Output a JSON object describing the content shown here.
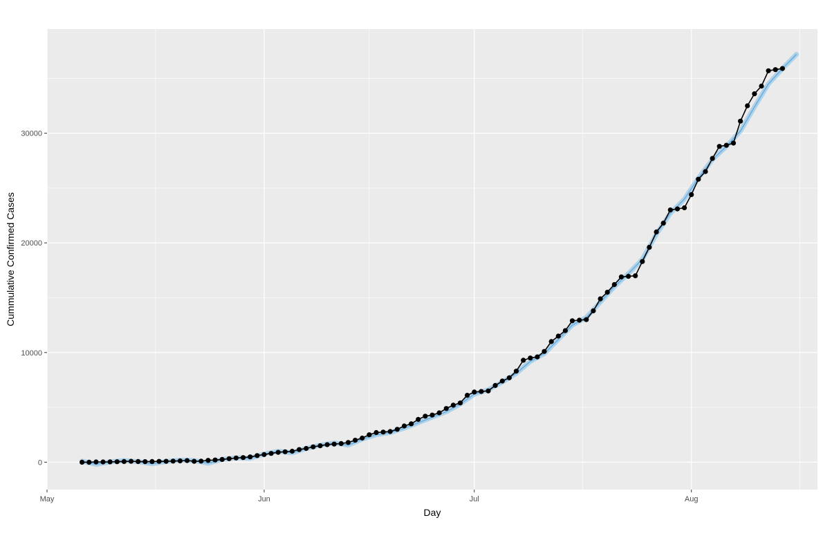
{
  "chart_data": {
    "type": "line",
    "title": "",
    "xlabel": "Day",
    "ylabel": "Cummulative Confirmed Cases",
    "x_tick_labels": [
      "May",
      "Jun",
      "Jul",
      "Aug"
    ],
    "x_tick_dates": [
      "2020-05-01",
      "2020-06-01",
      "2020-07-01",
      "2020-08-01"
    ],
    "y_tick_values": [
      0,
      10000,
      20000,
      30000
    ],
    "y_tick_labels": [
      "0",
      "10000",
      "20000",
      "30000"
    ],
    "xlim": [
      "2020-04-31",
      "2020-08-19"
    ],
    "ylim": [
      -2500,
      39500
    ],
    "grid": true,
    "background_color": "#EBEBEB",
    "grid_color": "#FFFFFF",
    "series": [
      {
        "role": "observed",
        "color": "#000000",
        "x": [
          "2020-05-06",
          "2020-05-07",
          "2020-05-08",
          "2020-05-09",
          "2020-05-10",
          "2020-05-11",
          "2020-05-12",
          "2020-05-13",
          "2020-05-14",
          "2020-05-15",
          "2020-05-16",
          "2020-05-17",
          "2020-05-18",
          "2020-05-19",
          "2020-05-20",
          "2020-05-21",
          "2020-05-22",
          "2020-05-23",
          "2020-05-24",
          "2020-05-25",
          "2020-05-26",
          "2020-05-27",
          "2020-05-28",
          "2020-05-29",
          "2020-05-30",
          "2020-05-31",
          "2020-06-01",
          "2020-06-02",
          "2020-06-03",
          "2020-06-04",
          "2020-06-05",
          "2020-06-06",
          "2020-06-07",
          "2020-06-08",
          "2020-06-09",
          "2020-06-10",
          "2020-06-11",
          "2020-06-12",
          "2020-06-13",
          "2020-06-14",
          "2020-06-15",
          "2020-06-16",
          "2020-06-17",
          "2020-06-18",
          "2020-06-19",
          "2020-06-20",
          "2020-06-21",
          "2020-06-22",
          "2020-06-23",
          "2020-06-24",
          "2020-06-25",
          "2020-06-26",
          "2020-06-27",
          "2020-06-28",
          "2020-06-29",
          "2020-06-30",
          "2020-07-01",
          "2020-07-02",
          "2020-07-03",
          "2020-07-04",
          "2020-07-05",
          "2020-07-06",
          "2020-07-07",
          "2020-07-08",
          "2020-07-09",
          "2020-07-10",
          "2020-07-11",
          "2020-07-12",
          "2020-07-13",
          "2020-07-14",
          "2020-07-15",
          "2020-07-16",
          "2020-07-17",
          "2020-07-18",
          "2020-07-19",
          "2020-07-20",
          "2020-07-21",
          "2020-07-22",
          "2020-07-23",
          "2020-07-24",
          "2020-07-25",
          "2020-07-26",
          "2020-07-27",
          "2020-07-28",
          "2020-07-29",
          "2020-07-30",
          "2020-07-31",
          "2020-08-01",
          "2020-08-02",
          "2020-08-03",
          "2020-08-04",
          "2020-08-05",
          "2020-08-06",
          "2020-08-07",
          "2020-08-08",
          "2020-08-09",
          "2020-08-10",
          "2020-08-11",
          "2020-08-12",
          "2020-08-13",
          "2020-08-14"
        ],
        "y": [
          0,
          0,
          20,
          20,
          30,
          40,
          60,
          80,
          60,
          50,
          60,
          70,
          80,
          100,
          120,
          150,
          80,
          100,
          170,
          200,
          250,
          320,
          380,
          420,
          480,
          600,
          700,
          800,
          900,
          950,
          1000,
          1150,
          1250,
          1400,
          1500,
          1600,
          1650,
          1700,
          1800,
          2000,
          2200,
          2500,
          2700,
          2750,
          2800,
          3000,
          3300,
          3500,
          3900,
          4200,
          4300,
          4500,
          4900,
          5200,
          5400,
          6100,
          6400,
          6450,
          6500,
          7000,
          7400,
          7700,
          8300,
          9300,
          9500,
          9600,
          10100,
          11000,
          11500,
          12000,
          12900,
          12950,
          13000,
          13800,
          14900,
          15500,
          16200,
          16900,
          16950,
          17000,
          18300,
          19600,
          21000,
          21800,
          23000,
          23100,
          23200,
          24400,
          25800,
          26500,
          27700,
          28800,
          28900,
          29100,
          31100,
          32500,
          33600,
          34300,
          35700,
          35800,
          35900
        ]
      },
      {
        "role": "fitted",
        "color": "#5FA8E0",
        "band_color": "#A6CEE8",
        "x": [
          "2020-05-06",
          "2020-05-08",
          "2020-05-10",
          "2020-05-12",
          "2020-05-14",
          "2020-05-16",
          "2020-05-18",
          "2020-05-20",
          "2020-05-22",
          "2020-05-24",
          "2020-05-26",
          "2020-05-28",
          "2020-05-30",
          "2020-06-01",
          "2020-06-03",
          "2020-06-05",
          "2020-06-07",
          "2020-06-09",
          "2020-06-11",
          "2020-06-13",
          "2020-06-15",
          "2020-06-17",
          "2020-06-19",
          "2020-06-21",
          "2020-06-23",
          "2020-06-25",
          "2020-06-27",
          "2020-06-29",
          "2020-07-01",
          "2020-07-03",
          "2020-07-05",
          "2020-07-07",
          "2020-07-09",
          "2020-07-11",
          "2020-07-13",
          "2020-07-15",
          "2020-07-17",
          "2020-07-19",
          "2020-07-21",
          "2020-07-23",
          "2020-07-25",
          "2020-07-27",
          "2020-07-29",
          "2020-07-31",
          "2020-08-02",
          "2020-08-04",
          "2020-08-06",
          "2020-08-08",
          "2020-08-10",
          "2020-08-12",
          "2020-08-14",
          "2020-08-16"
        ],
        "y": [
          100,
          -200,
          20,
          150,
          50,
          -150,
          60,
          200,
          150,
          -100,
          250,
          400,
          350,
          750,
          1000,
          850,
          1250,
          1550,
          1750,
          1550,
          2100,
          2500,
          2700,
          3100,
          3600,
          4100,
          4600,
          5300,
          6200,
          6600,
          7300,
          8100,
          9200,
          9900,
          11200,
          12500,
          13200,
          14600,
          16000,
          17200,
          18500,
          20800,
          22700,
          24000,
          25900,
          27600,
          28800,
          30200,
          32400,
          34500,
          35900,
          37200
        ]
      }
    ]
  }
}
